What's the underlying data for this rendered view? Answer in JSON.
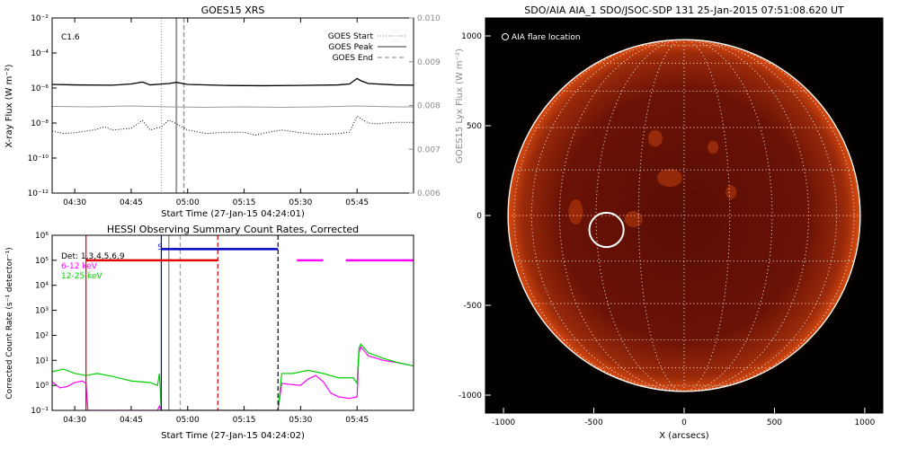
{
  "chart_data": [
    {
      "type": "line",
      "title": "GOES15 XRS",
      "xlabel": "Start Time (27-Jan-15 04:24:01)",
      "ylabel": "X-ray Flux (W m⁻²)",
      "y2label": "GOES15 Lyx Flux (W m⁻²)",
      "xlim": [
        "04:24",
        "06:00"
      ],
      "ylim": [
        1e-12,
        0.01
      ],
      "y_scale": "log",
      "y2lim": [
        0.006,
        0.01
      ],
      "x_ticks": [
        "04:30",
        "04:45",
        "05:00",
        "05:15",
        "05:30",
        "05:45"
      ],
      "y_ticks": [
        "10⁻¹²",
        "10⁻¹⁰",
        "10⁻⁸",
        "10⁻⁶",
        "10⁻⁴",
        "10⁻²"
      ],
      "y2_ticks": [
        "0.006",
        "0.007",
        "0.008",
        "0.009",
        "0.010"
      ],
      "annotation": "C1.6",
      "legend": [
        {
          "label": "GOES Start",
          "style": "dotted"
        },
        {
          "label": "GOES Peak",
          "style": "solid"
        },
        {
          "label": "GOES End",
          "style": "dashed"
        }
      ],
      "legend_position": "top-right",
      "event_markers": {
        "start": "04:53",
        "peak": "04:57",
        "end": "04:59"
      },
      "series": [
        {
          "key": "long",
          "color": "#000000",
          "style": "solid",
          "t": [
            "04:24",
            "04:30",
            "04:40",
            "04:45",
            "04:48",
            "04:50",
            "04:55",
            "04:57",
            "05:00",
            "05:10",
            "05:20",
            "05:30",
            "05:40",
            "05:43",
            "05:45",
            "05:46",
            "05:48",
            "05:55",
            "06:00"
          ],
          "v": [
            1.6e-06,
            1.5e-06,
            1.45e-06,
            1.7e-06,
            2.2e-06,
            1.5e-06,
            1.8e-06,
            2.1e-06,
            1.6e-06,
            1.4e-06,
            1.35e-06,
            1.4e-06,
            1.5e-06,
            1.7e-06,
            3.5e-06,
            2.6e-06,
            1.8e-06,
            1.5e-06,
            1.45e-06
          ]
        },
        {
          "key": "short",
          "color": "#000000",
          "style": "dotted",
          "t": [
            "04:24",
            "04:27",
            "04:30",
            "04:35",
            "04:38",
            "04:40",
            "04:45",
            "04:48",
            "04:50",
            "04:53",
            "04:55",
            "04:57",
            "05:00",
            "05:05",
            "05:10",
            "05:15",
            "05:18",
            "05:20",
            "05:25",
            "05:30",
            "05:35",
            "05:40",
            "05:43",
            "05:45",
            "05:46",
            "05:48",
            "05:50",
            "05:55",
            "06:00"
          ],
          "v": [
            3.5e-09,
            2.5e-09,
            2.8e-09,
            4e-09,
            6e-09,
            4e-09,
            5e-09,
            1.4e-08,
            4e-09,
            6e-09,
            1.5e-08,
            9e-09,
            4e-09,
            2.5e-09,
            3e-09,
            3e-09,
            2e-09,
            2.6e-09,
            4e-09,
            2.8e-09,
            2.2e-09,
            2.5e-09,
            3e-09,
            2.5e-08,
            1.8e-08,
            1e-08,
            9e-09,
            1.1e-08,
            1.1e-08
          ]
        },
        {
          "key": "lyman",
          "color": "#9a9a9a",
          "style": "solid",
          "axis": "right",
          "t": [
            "04:24",
            "04:35",
            "04:45",
            "04:55",
            "05:05",
            "05:15",
            "05:25",
            "05:35",
            "05:45",
            "05:55",
            "06:00"
          ],
          "v": [
            0.00798,
            0.00797,
            0.00799,
            0.00797,
            0.00796,
            0.00797,
            0.00796,
            0.00797,
            0.00799,
            0.00797,
            0.00797
          ]
        }
      ]
    },
    {
      "type": "line",
      "title": "HESSI Observing Summary Count Rates, Corrected",
      "xlabel": "Start Time (27-Jan-15 04:24:02)",
      "ylabel": "Corrected Count Rate (s⁻¹ detector⁻¹)",
      "xlim": [
        "04:24",
        "06:00"
      ],
      "ylim": [
        0.1,
        1000000.0
      ],
      "y_scale": "log",
      "x_ticks": [
        "04:30",
        "04:45",
        "05:00",
        "05:15",
        "05:30",
        "05:45"
      ],
      "y_ticks": [
        "10⁻¹",
        "10⁰",
        "10¹",
        "10²",
        "10³",
        "10⁴",
        "10⁵",
        "10⁶"
      ],
      "legend": [
        {
          "label": "Det: 1,3,4,5,6,9",
          "color": "#000000"
        },
        {
          "label": "6-12 keV",
          "color": "#ff00ff"
        },
        {
          "label": "12-25 keV",
          "color": "#00d000"
        }
      ],
      "legend_position": "top-left",
      "annotations": [
        {
          "text": "S",
          "t": "04:52",
          "color": "#2020c0"
        }
      ],
      "bars": [
        {
          "color": "#e00000",
          "t_start": "04:33",
          "t_end": "05:08",
          "level": 100000.0
        },
        {
          "color": "#0000c0",
          "t_start": "04:53",
          "t_end": "05:24",
          "level": 280000.0
        },
        {
          "color": "#ff00ff",
          "t_start": "05:29",
          "t_end": "05:36",
          "level": 100000.0
        },
        {
          "color": "#ff00ff",
          "t_start": "05:42",
          "t_end": "06:00",
          "level": 100000.0
        }
      ],
      "vlines": [
        {
          "t": "04:33",
          "color": "#e00000",
          "style": "solid"
        },
        {
          "t": "04:53",
          "color": "#0000c0",
          "style": "solid"
        },
        {
          "t": "04:55",
          "color": "#808080",
          "style": "solid"
        },
        {
          "t": "04:58",
          "color": "#a0a0a0",
          "style": "dashed"
        },
        {
          "t": "05:08",
          "color": "#e00000",
          "style": "dashed"
        },
        {
          "t": "05:24",
          "color": "#000040",
          "style": "dashed"
        }
      ],
      "series": [
        {
          "key": "6-12 keV",
          "color": "#ff00ff",
          "t": [
            "04:24",
            "04:26",
            "04:28",
            "04:30",
            "04:32",
            "04:33",
            "04:33.5",
            "04:52",
            "04:52.5",
            "04:53",
            "05:24",
            "05:25",
            "05:27",
            "05:30",
            "05:32",
            "05:34",
            "05:36",
            "05:38",
            "05:40",
            "05:43",
            "05:45",
            "05:45.5",
            "05:46",
            "05:48",
            "05:52",
            "05:56",
            "06:00"
          ],
          "v": [
            1.4,
            0.8,
            0.9,
            1.3,
            1.5,
            1.2,
            0.1,
            0.1,
            0.15,
            0.1,
            0.1,
            1.2,
            1.1,
            1.0,
            1.8,
            2.5,
            1.4,
            0.5,
            0.35,
            0.3,
            0.35,
            20,
            35,
            15,
            10,
            8,
            6
          ]
        },
        {
          "key": "12-25 keV",
          "color": "#00d000",
          "t": [
            "04:24",
            "04:27",
            "04:30",
            "04:33",
            "04:36",
            "04:40",
            "04:45",
            "04:50",
            "04:52",
            "04:52.5",
            "04:53",
            "05:24",
            "05:25",
            "05:28",
            "05:32",
            "05:36",
            "05:40",
            "05:44",
            "05:45",
            "05:45.5",
            "05:46",
            "05:48",
            "05:52",
            "05:56",
            "06:00"
          ],
          "v": [
            3.5,
            4.5,
            3.0,
            2.5,
            3.0,
            2.3,
            1.5,
            1.3,
            1.0,
            3.0,
            0.1,
            0.1,
            3.0,
            3.0,
            4.0,
            3.0,
            2.0,
            2.0,
            1.2,
            30,
            45,
            20,
            12,
            8,
            6
          ]
        }
      ]
    },
    {
      "type": "scatter",
      "title": "SDO/AIA AIA_1 SDO/JSOC-SDP 131 25-Jan-2015 07:51:08.620 UT",
      "xlabel": "X (arcsecs)",
      "ylabel": "",
      "xlim": [
        -1100,
        1100
      ],
      "ylim": [
        -1100,
        1100
      ],
      "x_ticks": [
        "-1000",
        "-500",
        "0",
        "500",
        "1000"
      ],
      "y_ticks": [
        "-1000",
        "-500",
        "0",
        "500",
        "1000"
      ],
      "legend": [
        {
          "label": "AIA flare location",
          "symbol": "circle"
        }
      ],
      "legend_position": "top-left",
      "disk_radius": 975,
      "grid_spacing_deg": 15,
      "points": [
        {
          "label": "AIA flare location",
          "x": -430,
          "y": -80,
          "radius": 95
        }
      ]
    }
  ]
}
